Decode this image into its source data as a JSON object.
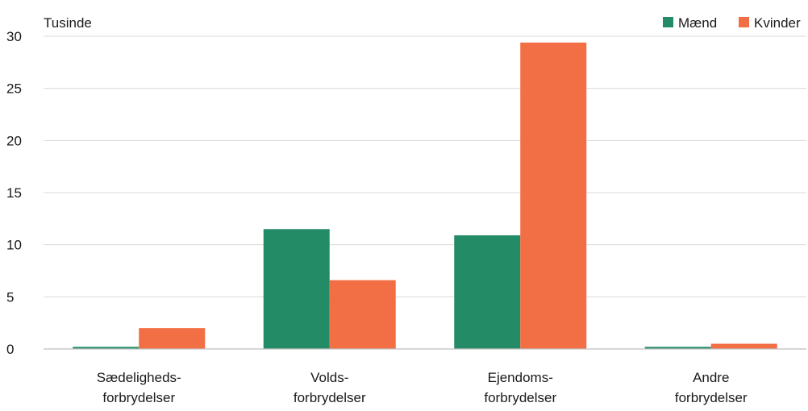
{
  "chart_data": {
    "type": "bar",
    "unit_label": "Tusinde",
    "categories": [
      [
        "Sædeligheds-",
        "forbrydelser"
      ],
      [
        "Volds-",
        "forbrydelser"
      ],
      [
        "Ejendoms-",
        "forbrydelser"
      ],
      [
        "Andre",
        "forbrydelser"
      ]
    ],
    "series": [
      {
        "name": "Mænd",
        "color": "#238c66",
        "values": [
          0.2,
          11.5,
          10.9,
          0.2
        ]
      },
      {
        "name": "Kvinder",
        "color": "#f26e44",
        "values": [
          2.0,
          6.6,
          29.4,
          0.5
        ]
      }
    ],
    "ylim": [
      0,
      30
    ],
    "yticks": [
      0,
      5,
      10,
      15,
      20,
      25,
      30
    ],
    "grid": true,
    "legend_position": "top-right"
  }
}
